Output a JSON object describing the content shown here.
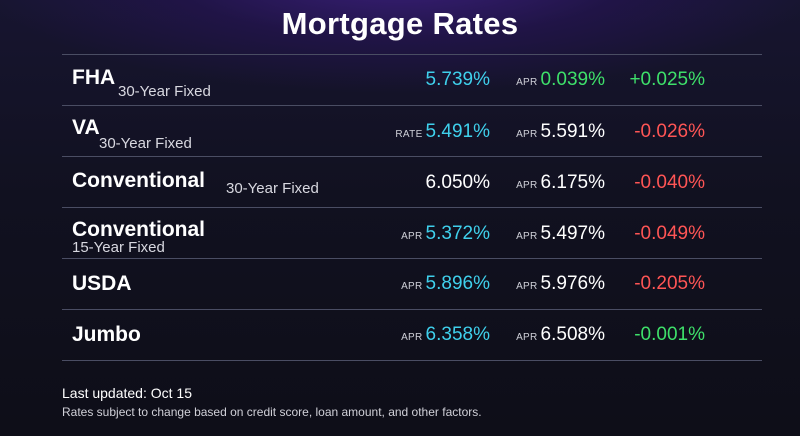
{
  "title": "Mortgage Rates",
  "rows": [
    {
      "name": "FHA",
      "term": "30-Year Fixed",
      "rate_tag": "",
      "rate": "5.739%",
      "apr_tag": "APR",
      "apr": "0.039%",
      "change": "+0.025%"
    },
    {
      "name": "VA",
      "term": "30-Year Fixed",
      "rate_tag": "RATE",
      "rate": "5.491%",
      "apr_tag": "APR",
      "apr": "5.591%",
      "change": "-0.026%"
    },
    {
      "name": "Conventional",
      "term": "30-Year Fixed",
      "rate_tag": "",
      "rate": "6.050%",
      "apr_tag": "APR",
      "apr": "6.175%",
      "change": "-0.040%"
    },
    {
      "name": "Conventional",
      "term": "15-Year Fixed",
      "rate_tag": "APR",
      "rate": "5.372%",
      "apr_tag": "APR",
      "apr": "5.497%",
      "change": "-0.049%"
    },
    {
      "name": "USDA",
      "term": "",
      "rate_tag": "APR",
      "rate": "5.896%",
      "apr_tag": "APR",
      "apr": "5.976%",
      "change": "-0.205%"
    },
    {
      "name": "Jumbo",
      "term": "",
      "rate_tag": "APR",
      "rate": "6.358%",
      "apr_tag": "APR",
      "apr": "6.508%",
      "change": "-0.001%"
    }
  ],
  "footer": {
    "updated": "Last updated: Oct 15",
    "note": "Rates subject to change based on credit score, loan amount, and other factors."
  },
  "colors": {
    "rate": "#3fd0ec",
    "positive": "#3ee06a",
    "negative": "#ff5555"
  }
}
